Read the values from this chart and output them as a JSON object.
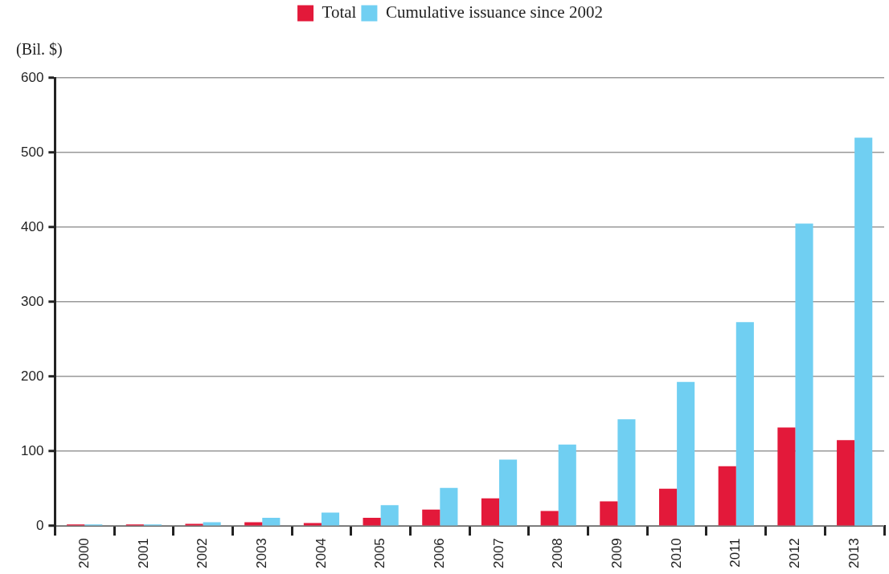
{
  "chart_data": {
    "type": "bar",
    "ylabel": "(Bil. $)",
    "categories": [
      "2000",
      "2001",
      "2002",
      "2003",
      "2004",
      "2005",
      "2006",
      "2007",
      "2008",
      "2009",
      "2010",
      "2011",
      "2012",
      "2013"
    ],
    "series": [
      {
        "name": "Total",
        "color": "#e3193a",
        "values": [
          2,
          2,
          3,
          5,
          4,
          11,
          22,
          37,
          20,
          33,
          50,
          80,
          132,
          115
        ]
      },
      {
        "name": "Cumulative issuance since 2002",
        "color": "#70cff2",
        "values": [
          2,
          2,
          5,
          11,
          18,
          28,
          51,
          89,
          109,
          143,
          193,
          273,
          405,
          520
        ]
      }
    ],
    "ylim": [
      0,
      600
    ],
    "yticks": [
      0,
      100,
      200,
      300,
      400,
      500,
      600
    ],
    "grid": "y",
    "legend": "top"
  }
}
